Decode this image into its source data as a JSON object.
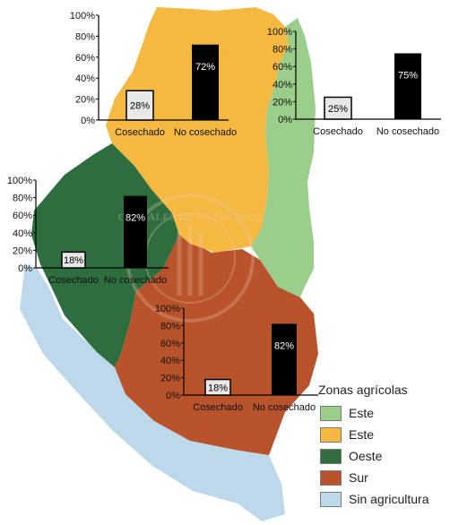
{
  "zone_colors": {
    "este_verde": "#9bcd8b",
    "este_amarillo": "#f5b942",
    "oeste": "#2e6e3e",
    "sur": "#b8532b",
    "sin_agricultura": "#bcd8ea",
    "no_cosechado_bar": "#000000",
    "cosechado_bar": "#e8e8e8"
  },
  "watermark": "CEREALES DE ENTRE RIOS",
  "legend": {
    "title": "Zonas agrícolas",
    "items": [
      {
        "label": "Este",
        "color": "#9bcd8b"
      },
      {
        "label": "Este",
        "color": "#f5b942"
      },
      {
        "label": "Oeste",
        "color": "#2e6e3e"
      },
      {
        "label": "Sur",
        "color": "#b8532b"
      },
      {
        "label": "Sin agricultura",
        "color": "#bcd8ea"
      }
    ]
  },
  "chart_data": [
    {
      "type": "bar",
      "zone": "Este (amarillo)",
      "categories": [
        "Cosechado",
        "No cosechado"
      ],
      "values": [
        28,
        72
      ],
      "value_labels": [
        "28%",
        "72%"
      ],
      "ylim": [
        0,
        100
      ],
      "yticks": [
        "0%",
        "20%",
        "40%",
        "60%",
        "80%",
        "100%"
      ],
      "grid": false
    },
    {
      "type": "bar",
      "zone": "Este (verde)",
      "categories": [
        "Cosechado",
        "No cosechado"
      ],
      "values": [
        25,
        75
      ],
      "value_labels": [
        "25%",
        "75%"
      ],
      "ylim": [
        0,
        100
      ],
      "yticks": [
        "0%",
        "20%",
        "40%",
        "60%",
        "80%",
        "100%"
      ],
      "grid": false
    },
    {
      "type": "bar",
      "zone": "Oeste",
      "categories": [
        "Cosechado",
        "No cosechado"
      ],
      "values": [
        18,
        82
      ],
      "value_labels": [
        "18%",
        "82%"
      ],
      "ylim": [
        0,
        100
      ],
      "yticks": [
        "0%",
        "20%",
        "40%",
        "60%",
        "80%",
        "100%"
      ],
      "grid": false
    },
    {
      "type": "bar",
      "zone": "Sur",
      "categories": [
        "Cosechado",
        "No cosechado"
      ],
      "values": [
        18,
        82
      ],
      "value_labels": [
        "18%",
        "82%"
      ],
      "ylim": [
        0,
        100
      ],
      "yticks": [
        "0%",
        "20%",
        "40%",
        "60%",
        "80%",
        "100%"
      ],
      "grid": false
    }
  ]
}
